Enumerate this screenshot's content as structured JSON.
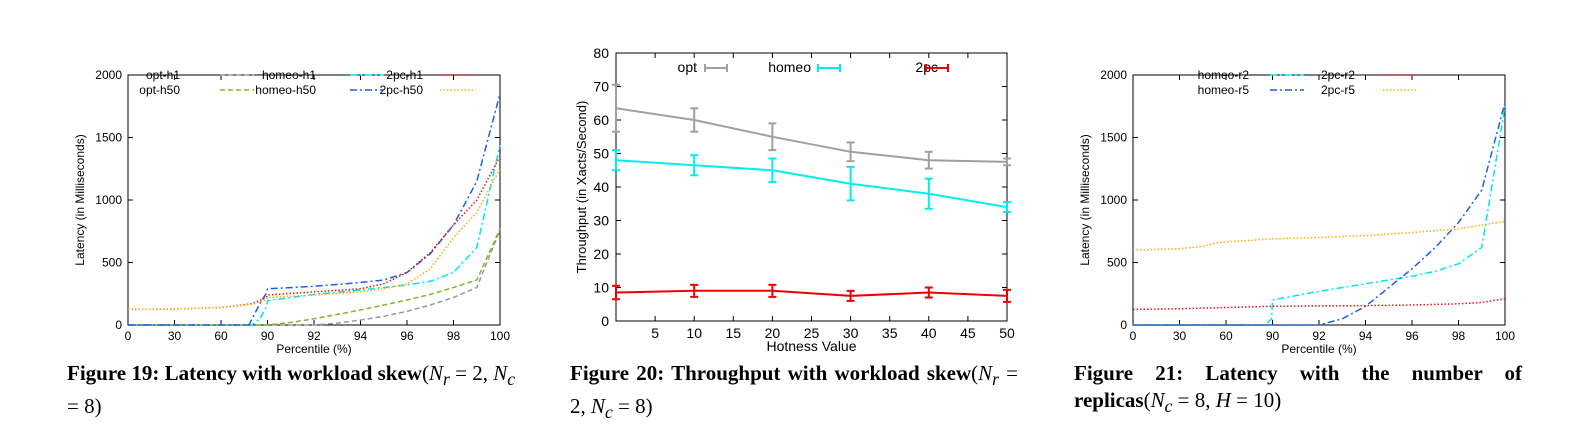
{
  "chart_data": [
    {
      "type": "line",
      "xlabel": "Percentile (%)",
      "ylabel": "Latency (in Milliseconds)",
      "x_ticks": [
        "0",
        "30",
        "60",
        "90",
        "92",
        "94",
        "96",
        "98",
        "100"
      ],
      "y_ticks": [
        "0",
        "500",
        "1000",
        "1500",
        "2000"
      ],
      "ylim": [
        0,
        2000
      ],
      "legend_rows": [
        [
          "opt-h1",
          "homeo-h1",
          "2pc-h1"
        ],
        [
          "opt-h50",
          "homeo-h50",
          "2pc-h50"
        ]
      ],
      "series": [
        {
          "name": "opt-h1",
          "color": "#999999",
          "dash": "dashed",
          "points": [
            [
              0,
              0
            ],
            [
              30,
              0
            ],
            [
              60,
              0
            ],
            [
              90,
              0
            ],
            [
              92,
              0
            ],
            [
              93,
              15
            ],
            [
              94,
              40
            ],
            [
              95,
              70
            ],
            [
              96,
              110
            ],
            [
              97,
              160
            ],
            [
              98,
              220
            ],
            [
              99,
              300
            ],
            [
              100,
              760
            ]
          ]
        },
        {
          "name": "opt-h50",
          "color": "#7ab829",
          "dash": "dashed",
          "points": [
            [
              0,
              0
            ],
            [
              30,
              0
            ],
            [
              60,
              0
            ],
            [
              90,
              0
            ],
            [
              91,
              20
            ],
            [
              92,
              50
            ],
            [
              93,
              85
            ],
            [
              94,
              120
            ],
            [
              95,
              160
            ],
            [
              96,
              200
            ],
            [
              97,
              245
            ],
            [
              98,
              300
            ],
            [
              99,
              360
            ],
            [
              100,
              770
            ]
          ]
        },
        {
          "name": "homeo-h1",
          "color": "#00e5ee",
          "dash": "dashdot",
          "points": [
            [
              0,
              0
            ],
            [
              30,
              0
            ],
            [
              60,
              0
            ],
            [
              80,
              0
            ],
            [
              85,
              50
            ],
            [
              89.5,
              150
            ],
            [
              90,
              195
            ],
            [
              92,
              245
            ],
            [
              94,
              280
            ],
            [
              96,
              320
            ],
            [
              97,
              350
            ],
            [
              98,
              420
            ],
            [
              99,
              620
            ],
            [
              100,
              1440
            ]
          ]
        },
        {
          "name": "homeo-h50",
          "color": "#1f5fe0",
          "dash": "dashdot",
          "points": [
            [
              0,
              0
            ],
            [
              30,
              0
            ],
            [
              60,
              0
            ],
            [
              78,
              0
            ],
            [
              85,
              170
            ],
            [
              89.5,
              260
            ],
            [
              90,
              290
            ],
            [
              92,
              310
            ],
            [
              94,
              340
            ],
            [
              95,
              360
            ],
            [
              96,
              420
            ],
            [
              97,
              570
            ],
            [
              98,
              800
            ],
            [
              99,
              1150
            ],
            [
              100,
              1850
            ]
          ]
        },
        {
          "name": "2pc-h1",
          "color": "#ee1111",
          "dash": "dotted",
          "points": [
            [
              0,
              125
            ],
            [
              30,
              128
            ],
            [
              60,
              140
            ],
            [
              80,
              170
            ],
            [
              89,
              220
            ],
            [
              90,
              240
            ],
            [
              92,
              265
            ],
            [
              94,
              290
            ],
            [
              95,
              330
            ],
            [
              96,
              420
            ],
            [
              97,
              580
            ],
            [
              98,
              800
            ],
            [
              99,
              1000
            ],
            [
              100,
              1350
            ]
          ]
        },
        {
          "name": "2pc-h50",
          "color": "#ffaa00",
          "dash": "dotted",
          "points": [
            [
              0,
              125
            ],
            [
              30,
              128
            ],
            [
              60,
              140
            ],
            [
              80,
              165
            ],
            [
              89,
              200
            ],
            [
              90,
              220
            ],
            [
              92,
              240
            ],
            [
              94,
              265
            ],
            [
              95,
              290
            ],
            [
              96,
              330
            ],
            [
              97,
              450
            ],
            [
              98,
              700
            ],
            [
              99,
              900
            ],
            [
              100,
              1250
            ]
          ]
        }
      ]
    },
    {
      "type": "line",
      "xlabel": "Hotness Value",
      "ylabel": "Throughput (in Xacts/Second)",
      "x_ticks": [
        5,
        10,
        15,
        20,
        25,
        30,
        35,
        40,
        45,
        50
      ],
      "y_ticks": [
        0,
        10,
        20,
        30,
        40,
        50,
        60,
        70,
        80
      ],
      "xlim": [
        0,
        50
      ],
      "ylim": [
        0,
        80
      ],
      "series": [
        {
          "name": "opt",
          "color": "#a0a0a0",
          "x": [
            0,
            10,
            20,
            30,
            40,
            50
          ],
          "y": [
            63.5,
            60,
            55,
            50.5,
            48,
            47.5
          ],
          "err": [
            7,
            3.5,
            4,
            2.8,
            2.5,
            1
          ]
        },
        {
          "name": "homeo",
          "color": "#00eeee",
          "x": [
            0,
            10,
            20,
            30,
            40,
            50
          ],
          "y": [
            48,
            46.5,
            45,
            41,
            38,
            34
          ],
          "err": [
            3,
            3,
            3.5,
            5,
            4.5,
            1.5
          ]
        },
        {
          "name": "2pc",
          "color": "#ee0000",
          "x": [
            0,
            10,
            20,
            30,
            40,
            50
          ],
          "y": [
            8.5,
            9,
            9,
            7.5,
            8.5,
            7.5
          ],
          "err": [
            2,
            1.8,
            1.8,
            1.5,
            1.5,
            1.8
          ]
        }
      ]
    },
    {
      "type": "line",
      "xlabel": "Percentile (%)",
      "ylabel": "Latency (in Milliseconds)",
      "x_ticks": [
        "0",
        "30",
        "60",
        "90",
        "92",
        "94",
        "96",
        "98",
        "100"
      ],
      "y_ticks": [
        "0",
        "500",
        "1000",
        "1500",
        "2000"
      ],
      "ylim": [
        0,
        2000
      ],
      "legend_rows": [
        [
          "homeo-r2",
          "2pc-r2"
        ],
        [
          "homeo-r5",
          "2pc-r5"
        ]
      ],
      "series": [
        {
          "name": "homeo-r2",
          "color": "#00e5ee",
          "dash": "dashdot",
          "points": [
            [
              0,
              0
            ],
            [
              30,
              0
            ],
            [
              60,
              0
            ],
            [
              85,
              0
            ],
            [
              89.5,
              50
            ],
            [
              90,
              200
            ],
            [
              92,
              270
            ],
            [
              94,
              330
            ],
            [
              95,
              360
            ],
            [
              96,
              390
            ],
            [
              97,
              430
            ],
            [
              98,
              490
            ],
            [
              99,
              620
            ],
            [
              100,
              1750
            ]
          ]
        },
        {
          "name": "homeo-r5",
          "color": "#1f5fe0",
          "dash": "dashdot",
          "points": [
            [
              0,
              0
            ],
            [
              30,
              0
            ],
            [
              60,
              0
            ],
            [
              90,
              0
            ],
            [
              92,
              0
            ],
            [
              93,
              50
            ],
            [
              94,
              150
            ],
            [
              95,
              300
            ],
            [
              96,
              450
            ],
            [
              97,
              620
            ],
            [
              98,
              820
            ],
            [
              99,
              1080
            ],
            [
              100,
              1780
            ]
          ]
        },
        {
          "name": "2pc-r2",
          "color": "#ee1111",
          "dash": "dotted",
          "points": [
            [
              0,
              125
            ],
            [
              30,
              130
            ],
            [
              60,
              140
            ],
            [
              90,
              150
            ],
            [
              94,
              155
            ],
            [
              96,
              160
            ],
            [
              98,
              170
            ],
            [
              99,
              180
            ],
            [
              100,
              210
            ]
          ]
        },
        {
          "name": "2pc-r5",
          "color": "#ffaa00",
          "dash": "dotted",
          "points": [
            [
              0,
              600
            ],
            [
              30,
              610
            ],
            [
              45,
              630
            ],
            [
              55,
              660
            ],
            [
              60,
              665
            ],
            [
              90,
              690
            ],
            [
              92,
              700
            ],
            [
              94,
              715
            ],
            [
              96,
              740
            ],
            [
              98,
              770
            ],
            [
              100,
              830
            ]
          ]
        }
      ]
    }
  ],
  "captions": [
    {
      "label": "Figure 19:",
      "text": "Latency with workload skew",
      "math": "(N_r = 2, N_c = 8)"
    },
    {
      "label": "Figure 20:",
      "text": "Throughput with workload skew",
      "math": "(N_r = 2, N_c = 8)"
    },
    {
      "label": "Figure 21:",
      "text": "Latency with the number of replicas",
      "math": "(N_c = 8, H = 10)"
    }
  ]
}
